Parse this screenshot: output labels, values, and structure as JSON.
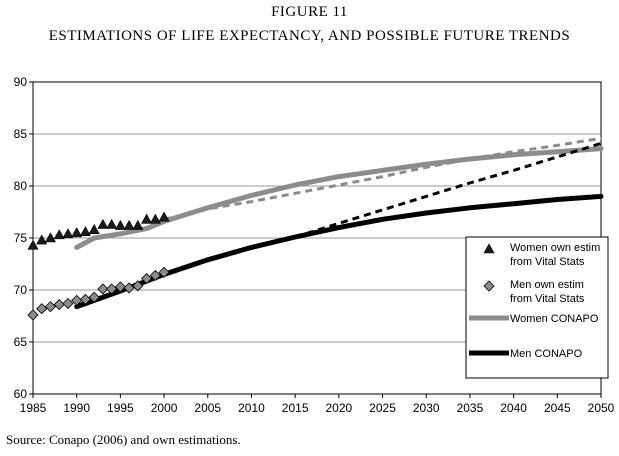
{
  "figure_number": "FIGURE 11",
  "figure_title": "ESTIMATIONS OF LIFE EXPECTANCY, AND POSSIBLE FUTURE TRENDS",
  "source_note": "Source: Conapo (2006) and own estimations.",
  "colors": {
    "women": "#8c8c8c",
    "men": "#000000",
    "women_marker": "#1a1a1a",
    "men_marker": "#8c8c8c",
    "gridline": "#9a9a9a"
  },
  "chart_data": {
    "type": "line",
    "title": "ESTIMATIONS OF LIFE EXPECTANCY, AND POSSIBLE FUTURE TRENDS",
    "xlabel": "",
    "ylabel": "",
    "xlim": [
      1985,
      2050
    ],
    "ylim": [
      60,
      90
    ],
    "x_ticks": [
      "1985",
      "1990",
      "1995",
      "2000",
      "2005",
      "2010",
      "2015",
      "2020",
      "2025",
      "2030",
      "2035",
      "2040",
      "2045",
      "2050"
    ],
    "y_ticks": [
      "60",
      "65",
      "70",
      "75",
      "80",
      "85",
      "90"
    ],
    "grid": "horizontal",
    "legend_position": "right",
    "series": [
      {
        "name": "Women own estim from Vital Stats",
        "legend_lines": [
          "Women own estim",
          "from Vital Stats"
        ],
        "style": "triangle-markers",
        "x": [
          1985,
          1986,
          1987,
          1988,
          1989,
          1990,
          1991,
          1992,
          1993,
          1994,
          1995,
          1996,
          1997,
          1998,
          1999,
          2000
        ],
        "values": [
          74.3,
          74.8,
          75.0,
          75.3,
          75.4,
          75.5,
          75.6,
          75.8,
          76.3,
          76.3,
          76.2,
          76.2,
          76.2,
          76.8,
          76.8,
          77.0
        ]
      },
      {
        "name": "Men own estim from Vital Stats",
        "legend_lines": [
          "Men own estim",
          "from Vital Stats"
        ],
        "style": "diamond-markers",
        "x": [
          1985,
          1986,
          1987,
          1988,
          1989,
          1990,
          1991,
          1992,
          1993,
          1994,
          1995,
          1996,
          1997,
          1998,
          1999,
          2000
        ],
        "values": [
          67.6,
          68.2,
          68.4,
          68.6,
          68.7,
          69.0,
          69.1,
          69.3,
          70.1,
          70.1,
          70.3,
          70.2,
          70.4,
          71.1,
          71.4,
          71.7
        ]
      },
      {
        "name": "Women CONAPO",
        "style": "thick-line",
        "x": [
          1990,
          1992,
          1995,
          1998,
          2000,
          2005,
          2010,
          2015,
          2020,
          2025,
          2030,
          2035,
          2040,
          2045,
          2050
        ],
        "values": [
          74.1,
          75.0,
          75.4,
          75.9,
          76.6,
          77.9,
          79.1,
          80.1,
          80.9,
          81.5,
          82.1,
          82.6,
          83.0,
          83.3,
          83.6
        ]
      },
      {
        "name": "Women projection (dashed)",
        "style": "dashed",
        "x": [
          2000,
          2005,
          2010,
          2015,
          2020,
          2025,
          2030,
          2035,
          2040,
          2045,
          2050
        ],
        "values": [
          76.8,
          77.8,
          78.5,
          79.3,
          80.1,
          80.9,
          81.8,
          82.6,
          83.3,
          83.9,
          84.6
        ]
      },
      {
        "name": "Men CONAPO",
        "style": "thick-line",
        "x": [
          1990,
          1995,
          2000,
          2005,
          2010,
          2015,
          2020,
          2025,
          2030,
          2035,
          2040,
          2045,
          2050
        ],
        "values": [
          68.4,
          69.9,
          71.5,
          72.9,
          74.1,
          75.1,
          76.0,
          76.8,
          77.4,
          77.9,
          78.3,
          78.7,
          79.0
        ]
      },
      {
        "name": "Men projection (dashed)",
        "style": "dashed",
        "x": [
          2015,
          2020,
          2025,
          2030,
          2035,
          2040,
          2045,
          2050
        ],
        "values": [
          75.1,
          76.4,
          77.7,
          79.0,
          80.3,
          81.5,
          82.8,
          84.1
        ]
      }
    ],
    "legend": [
      {
        "label_lines": [
          "Women own estim",
          "from Vital Stats"
        ],
        "marker": "triangle"
      },
      {
        "label_lines": [
          "Men own estim",
          "from Vital Stats"
        ],
        "marker": "diamond"
      },
      {
        "label_lines": [
          "Women CONAPO"
        ],
        "marker": "thick-gray-line"
      },
      {
        "label_lines": [
          "Men CONAPO"
        ],
        "marker": "thick-black-line"
      }
    ]
  }
}
